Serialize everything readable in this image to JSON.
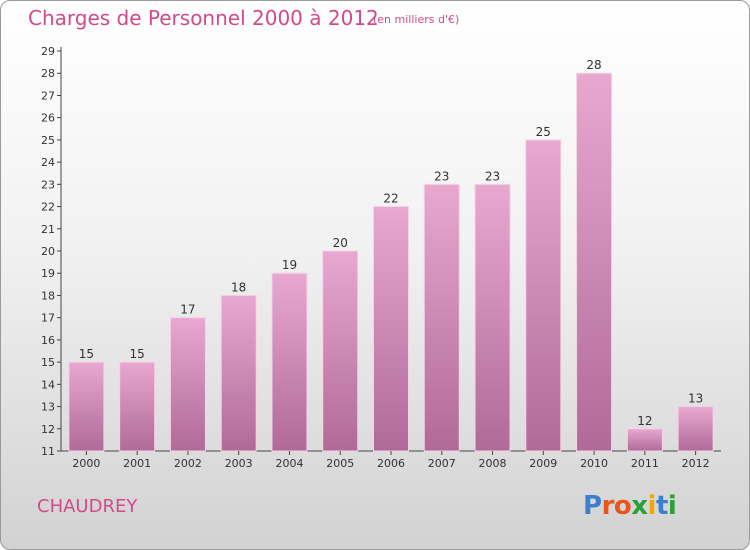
{
  "header": {
    "title": "Charges de Personnel 2000 à 2012",
    "subtitle": "(en milliers d'€)"
  },
  "footer": {
    "commune": "CHAUDREY",
    "logo_text": "Proxiti"
  },
  "colors": {
    "title": "#d14a8a",
    "bar_top": "#e8a8d0",
    "bar_bottom": "#b06a98",
    "logo_letters": [
      "#3a7fd0",
      "#e8561e",
      "#e8561e",
      "#2aa03a",
      "#f0a800",
      "#3a7fd0",
      "#2aa03a"
    ]
  },
  "chart_data": {
    "type": "bar",
    "title": "Charges de Personnel 2000 à 2012",
    "subtitle": "(en milliers d'€)",
    "xlabel": "",
    "ylabel": "",
    "categories": [
      "2000",
      "2001",
      "2002",
      "2003",
      "2004",
      "2005",
      "2006",
      "2007",
      "2008",
      "2009",
      "2010",
      "2011",
      "2012"
    ],
    "values": [
      15,
      15,
      17,
      18,
      19,
      20,
      22,
      23,
      23,
      25,
      28,
      12,
      13
    ],
    "ylim": [
      11,
      29
    ],
    "yticks": [
      11,
      12,
      13,
      14,
      15,
      16,
      17,
      18,
      19,
      20,
      21,
      22,
      23,
      24,
      25,
      26,
      27,
      28,
      29
    ],
    "grid": false,
    "data_labels": true,
    "legend": "none"
  }
}
